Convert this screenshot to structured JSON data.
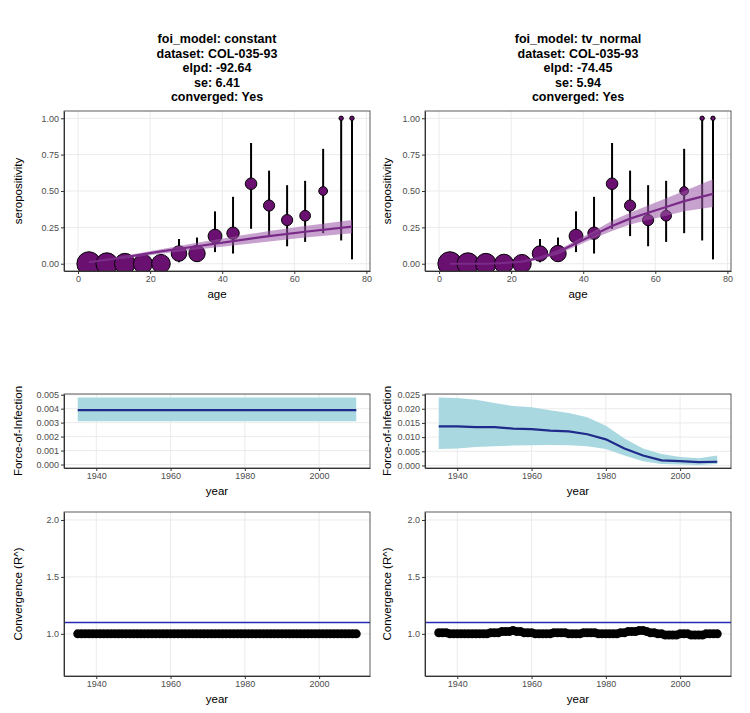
{
  "chart_data": [
    {
      "type": "scatter",
      "title": [
        "foi_model: constant",
        "dataset: COL-035-93",
        "elpd: -92.64",
        "se: 6.41",
        "converged: Yes"
      ],
      "xlabel": "age",
      "ylabel": "seropositivity",
      "xlim": [
        -3.9,
        81
      ],
      "ylim": [
        -0.05,
        1.05
      ],
      "xticks": [
        0,
        20,
        40,
        60,
        80
      ],
      "yticks": [
        {
          "value": 0,
          "label": "0.00"
        },
        {
          "value": 0.25,
          "label": "0.25"
        },
        {
          "value": 0.5,
          "label": "0.50"
        },
        {
          "value": 0.75,
          "label": "0.75"
        },
        {
          "value": 1,
          "label": "1.00"
        }
      ],
      "grid": true,
      "series": [
        {
          "type": "scatter",
          "marker": "circle",
          "color": "#6a1070",
          "x": [
            3,
            8,
            13,
            18,
            23,
            28,
            33,
            38,
            43,
            48,
            53,
            58,
            63,
            68,
            73,
            76
          ],
          "values": [
            0,
            0,
            0,
            0,
            0,
            0.07,
            0.07,
            0.19,
            0.21,
            0.55,
            0.4,
            0.3,
            0.33,
            0.5,
            1,
            1
          ],
          "lower": [
            0,
            0,
            0,
            0,
            0,
            0.01,
            0.02,
            0.08,
            0.07,
            0.24,
            0.19,
            0.12,
            0.15,
            0.21,
            0.16,
            0.03
          ],
          "upper": [
            0.04,
            0.04,
            0.04,
            0.05,
            0.06,
            0.17,
            0.18,
            0.36,
            0.46,
            0.83,
            0.64,
            0.54,
            0.57,
            0.79,
            1,
            1
          ],
          "sizes": [
            60,
            50,
            45,
            38,
            36,
            25,
            28,
            20,
            16,
            14,
            13,
            13,
            12,
            8,
            2,
            2
          ]
        },
        {
          "type": "line",
          "color": "#7a2a88",
          "x": [
            3,
            13,
            23,
            33,
            43,
            53,
            63,
            76
          ],
          "values": [
            0.01,
            0.045,
            0.085,
            0.12,
            0.155,
            0.19,
            0.22,
            0.255
          ],
          "lower": [
            0.008,
            0.036,
            0.068,
            0.097,
            0.125,
            0.153,
            0.18,
            0.21
          ],
          "upper": [
            0.012,
            0.054,
            0.1,
            0.145,
            0.185,
            0.225,
            0.26,
            0.3
          ]
        }
      ]
    },
    {
      "type": "scatter",
      "title": [
        "foi_model: tv_normal",
        "dataset: COL-035-93",
        "elpd: -74.45",
        "se: 5.94",
        "converged: Yes"
      ],
      "xlabel": "age",
      "ylabel": "seropositivity",
      "xlim": [
        -3.9,
        81
      ],
      "ylim": [
        -0.05,
        1.05
      ],
      "xticks": [
        0,
        20,
        40,
        60,
        80
      ],
      "yticks": [
        {
          "value": 0,
          "label": "0.00"
        },
        {
          "value": 0.25,
          "label": "0.25"
        },
        {
          "value": 0.5,
          "label": "0.50"
        },
        {
          "value": 0.75,
          "label": "0.75"
        },
        {
          "value": 1,
          "label": "1.00"
        }
      ],
      "grid": true,
      "series": [
        {
          "type": "scatter",
          "marker": "circle",
          "color": "#6a1070",
          "x": [
            3,
            8,
            13,
            18,
            23,
            28,
            33,
            38,
            43,
            48,
            53,
            58,
            63,
            68,
            73,
            76
          ],
          "values": [
            0,
            0,
            0,
            0,
            0,
            0.07,
            0.07,
            0.19,
            0.21,
            0.55,
            0.4,
            0.3,
            0.33,
            0.5,
            1,
            1
          ],
          "lower": [
            0,
            0,
            0,
            0,
            0,
            0.01,
            0.02,
            0.08,
            0.07,
            0.24,
            0.19,
            0.12,
            0.15,
            0.21,
            0.16,
            0.03
          ],
          "upper": [
            0.04,
            0.04,
            0.04,
            0.05,
            0.06,
            0.17,
            0.18,
            0.36,
            0.46,
            0.83,
            0.64,
            0.54,
            0.57,
            0.79,
            1,
            1
          ],
          "sizes": [
            60,
            50,
            45,
            38,
            36,
            25,
            28,
            20,
            16,
            14,
            13,
            13,
            12,
            8,
            2,
            2
          ]
        },
        {
          "type": "line",
          "color": "#7a2a88",
          "x": [
            3,
            8,
            13,
            18,
            23,
            28,
            33,
            38,
            43,
            48,
            53,
            58,
            63,
            68,
            76
          ],
          "values": [
            0,
            0,
            0,
            0.005,
            0.015,
            0.04,
            0.08,
            0.14,
            0.2,
            0.26,
            0.31,
            0.35,
            0.39,
            0.43,
            0.48
          ],
          "lower": [
            0,
            0,
            0,
            0.003,
            0.01,
            0.03,
            0.065,
            0.12,
            0.175,
            0.225,
            0.27,
            0.3,
            0.33,
            0.36,
            0.39
          ],
          "upper": [
            0.001,
            0.002,
            0.004,
            0.008,
            0.02,
            0.05,
            0.095,
            0.16,
            0.225,
            0.295,
            0.35,
            0.4,
            0.45,
            0.5,
            0.58
          ]
        }
      ]
    },
    {
      "type": "line",
      "xlabel": "year",
      "ylabel": "Force-of-Infection",
      "xlim": [
        1931.3,
        2013.7
      ],
      "ylim": [
        -0.00025,
        0.00505
      ],
      "xticks": [
        1940,
        1960,
        1980,
        2000
      ],
      "yticks": [
        {
          "value": 0,
          "label": "0.000"
        },
        {
          "value": 0.001,
          "label": "0.001"
        },
        {
          "value": 0.002,
          "label": "0.002"
        },
        {
          "value": 0.003,
          "label": "0.003"
        },
        {
          "value": 0.004,
          "label": "0.004"
        },
        {
          "value": 0.005,
          "label": "0.005"
        }
      ],
      "grid": true,
      "series": [
        {
          "type": "line",
          "color": "#1f2a8a",
          "x": [
            1935,
            1940,
            1945,
            1950,
            1955,
            1960,
            1965,
            1970,
            1975,
            1980,
            1985,
            1990,
            1995,
            2000,
            2005,
            2010
          ],
          "values": [
            0.0039,
            0.0039,
            0.0039,
            0.0039,
            0.0039,
            0.0039,
            0.0039,
            0.0039,
            0.0039,
            0.0039,
            0.0039,
            0.0039,
            0.0039,
            0.0039,
            0.0039,
            0.0039
          ],
          "lower": [
            0.0031,
            0.0031,
            0.0031,
            0.0031,
            0.0031,
            0.0031,
            0.0031,
            0.0031,
            0.0031,
            0.0031,
            0.0031,
            0.0031,
            0.0031,
            0.0031,
            0.0031,
            0.0031
          ],
          "upper": [
            0.0048,
            0.0048,
            0.0048,
            0.0048,
            0.0048,
            0.0048,
            0.0048,
            0.0048,
            0.0048,
            0.0048,
            0.0048,
            0.0048,
            0.0048,
            0.0048,
            0.0048,
            0.0048
          ]
        }
      ]
    },
    {
      "type": "line",
      "xlabel": "year",
      "ylabel": "Force-of-Infection",
      "xlim": [
        1931.3,
        2013.7
      ],
      "ylim": [
        -0.0009,
        0.0252
      ],
      "xticks": [
        1940,
        1960,
        1980,
        2000
      ],
      "yticks": [
        {
          "value": 0,
          "label": "0.000"
        },
        {
          "value": 0.005,
          "label": "0.005"
        },
        {
          "value": 0.01,
          "label": "0.010"
        },
        {
          "value": 0.015,
          "label": "0.015"
        },
        {
          "value": 0.02,
          "label": "0.020"
        },
        {
          "value": 0.025,
          "label": "0.025"
        }
      ],
      "grid": true,
      "series": [
        {
          "type": "line",
          "color": "#1f2a8a",
          "x": [
            1935,
            1940,
            1945,
            1950,
            1955,
            1960,
            1965,
            1970,
            1975,
            1980,
            1985,
            1990,
            1995,
            2000,
            2005,
            2010
          ],
          "values": [
            0.0138,
            0.0138,
            0.0135,
            0.0135,
            0.013,
            0.0128,
            0.0123,
            0.012,
            0.011,
            0.0092,
            0.006,
            0.0035,
            0.0018,
            0.0015,
            0.0012,
            0.0013
          ],
          "lower": [
            0.0058,
            0.006,
            0.0065,
            0.0068,
            0.007,
            0.0071,
            0.0072,
            0.0071,
            0.0068,
            0.0058,
            0.0035,
            0.0015,
            0.0005,
            0.0003,
            0.0002,
            0.0005
          ],
          "upper": [
            0.024,
            0.0238,
            0.0232,
            0.022,
            0.021,
            0.0205,
            0.0195,
            0.0185,
            0.017,
            0.014,
            0.0095,
            0.006,
            0.004,
            0.003,
            0.0025,
            0.0035
          ]
        }
      ]
    },
    {
      "type": "scatter",
      "xlabel": "year",
      "ylabel": "Convergence (R^)",
      "xlim": [
        1931.3,
        2013.7
      ],
      "ylim": [
        0.63,
        2.07
      ],
      "xticks": [
        1940,
        1960,
        1980,
        2000
      ],
      "yticks": [
        {
          "value": 1,
          "label": "1.0"
        },
        {
          "value": 1.5,
          "label": "1.5"
        },
        {
          "value": 2,
          "label": "2.0"
        }
      ],
      "grid": true,
      "series": [
        {
          "type": "scatter",
          "marker": "circle",
          "color": "#000000",
          "x": [
            1935,
            1936,
            1937,
            1938,
            1939,
            1940,
            1941,
            1942,
            1943,
            1944,
            1945,
            1946,
            1947,
            1948,
            1949,
            1950,
            1951,
            1952,
            1953,
            1954,
            1955,
            1956,
            1957,
            1958,
            1959,
            1960,
            1961,
            1962,
            1963,
            1964,
            1965,
            1966,
            1967,
            1968,
            1969,
            1970,
            1971,
            1972,
            1973,
            1974,
            1975,
            1976,
            1977,
            1978,
            1979,
            1980,
            1981,
            1982,
            1983,
            1984,
            1985,
            1986,
            1987,
            1988,
            1989,
            1990,
            1991,
            1992,
            1993,
            1994,
            1995,
            1996,
            1997,
            1998,
            1999,
            2000,
            2001,
            2002,
            2003,
            2004,
            2005,
            2006,
            2007,
            2008,
            2009,
            2010
          ],
          "values": [
            1,
            1,
            1,
            1,
            1,
            1,
            1,
            1,
            1,
            1,
            1,
            1,
            1,
            1,
            1,
            1,
            1,
            1,
            1,
            1,
            1,
            1,
            1,
            1,
            1,
            1,
            1,
            1,
            1,
            1,
            1,
            1,
            1,
            1,
            1,
            1,
            1,
            1,
            1,
            1,
            1,
            1,
            1,
            1,
            1,
            1,
            1,
            1,
            1,
            1,
            1,
            1,
            1,
            1,
            1,
            1,
            1,
            1,
            1,
            1,
            1,
            1,
            1,
            1,
            1,
            1,
            1,
            1,
            1,
            1,
            1,
            1,
            1,
            1,
            1,
            1
          ]
        },
        {
          "type": "hline",
          "color": "#2a2ab8",
          "values": [
            1.1
          ]
        }
      ]
    },
    {
      "type": "scatter",
      "xlabel": "year",
      "ylabel": "Convergence (R^)",
      "xlim": [
        1931.3,
        2013.7
      ],
      "ylim": [
        0.63,
        2.07
      ],
      "xticks": [
        1940,
        1960,
        1980,
        2000
      ],
      "yticks": [
        {
          "value": 1,
          "label": "1.0"
        },
        {
          "value": 1.5,
          "label": "1.5"
        },
        {
          "value": 2,
          "label": "2.0"
        }
      ],
      "grid": true,
      "series": [
        {
          "type": "scatter",
          "marker": "circle",
          "color": "#000000",
          "x": [
            1935,
            1936,
            1937,
            1938,
            1939,
            1940,
            1941,
            1942,
            1943,
            1944,
            1945,
            1946,
            1947,
            1948,
            1949,
            1950,
            1951,
            1952,
            1953,
            1954,
            1955,
            1956,
            1957,
            1958,
            1959,
            1960,
            1961,
            1962,
            1963,
            1964,
            1965,
            1966,
            1967,
            1968,
            1969,
            1970,
            1971,
            1972,
            1973,
            1974,
            1975,
            1976,
            1977,
            1978,
            1979,
            1980,
            1981,
            1982,
            1983,
            1984,
            1985,
            1986,
            1987,
            1988,
            1989,
            1990,
            1991,
            1992,
            1993,
            1994,
            1995,
            1996,
            1997,
            1998,
            1999,
            2000,
            2001,
            2002,
            2003,
            2004,
            2005,
            2006,
            2007,
            2008,
            2009,
            2010
          ],
          "values": [
            1.01,
            1.01,
            1.01,
            1.0,
            1.0,
            1.0,
            1.0,
            1.0,
            1.0,
            1.0,
            1.0,
            1.0,
            1.0,
            1.0,
            1.01,
            1.01,
            1.01,
            1.02,
            1.02,
            1.02,
            1.03,
            1.02,
            1.02,
            1.01,
            1.01,
            1.01,
            1.0,
            1.0,
            1.0,
            1.0,
            1.0,
            1.01,
            1.01,
            1.01,
            1.01,
            1.0,
            1.0,
            1.0,
            1.0,
            1.01,
            1.01,
            1.01,
            1.01,
            1.0,
            1.0,
            1.0,
            1.0,
            1.0,
            1.0,
            1.01,
            1.01,
            1.02,
            1.02,
            1.02,
            1.03,
            1.03,
            1.02,
            1.01,
            1.01,
            1.0,
            1.0,
            0.99,
            0.99,
            0.99,
            0.99,
            1.0,
            1.0,
            1.0,
            0.99,
            0.99,
            0.99,
            0.99,
            1.0,
            1.0,
            1.0,
            1.0
          ]
        },
        {
          "type": "hline",
          "color": "#2a2ab8",
          "values": [
            1.1
          ]
        }
      ]
    }
  ]
}
